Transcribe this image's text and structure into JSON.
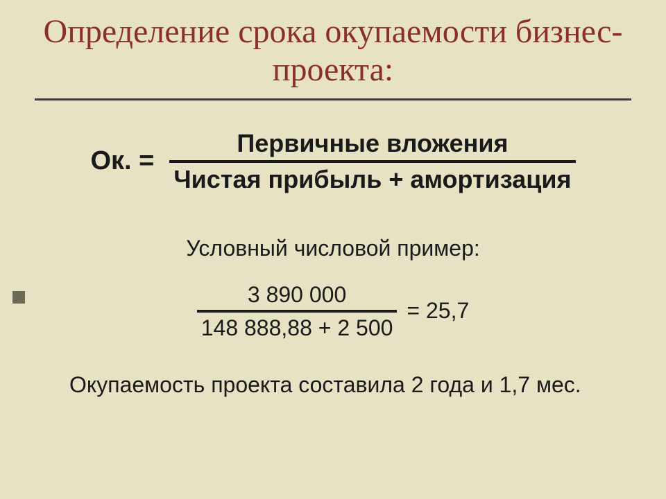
{
  "colors": {
    "background": "#e6e2c3",
    "title": "#8a3028",
    "text": "#1a1a1a",
    "rule": "#3a3a3a",
    "bullet": "#6b6b55"
  },
  "title": "Определение срока окупаемости бизнес-проекта:",
  "formula": {
    "lhs": "Ок. =",
    "numerator": "Первичные вложения",
    "denominator": "Чистая прибыль + амортизация"
  },
  "example": {
    "label": "Условный числовой пример:",
    "numerator": "3 890 000",
    "denominator": "148 888,88 + 2 500",
    "result": "= 25,7"
  },
  "conclusion": "Окупаемость проекта составила 2 года и 1,7 мес."
}
